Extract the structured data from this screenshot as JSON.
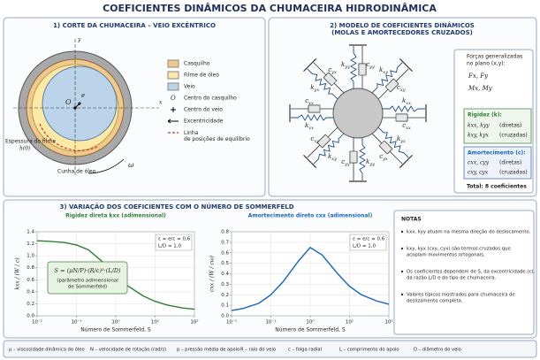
{
  "title": "COEFICIENTES DINÂMICOS DA CHUMACEIRA HIDRODINÂMICA",
  "panel1": {
    "heading": "1)  CORTE DA CHUMACEIRA – VEIO EXCÊNTRICO",
    "axis_x": "x",
    "axis_y": "y",
    "center": "O",
    "ecc": "e",
    "omega": "ω",
    "film_label": "Espessura do filme",
    "film_symbol": "h(θ)",
    "wedge": "Cunha de óleo",
    "legend": [
      "Casquilho",
      "Filme de óleo",
      "Veio",
      "Centro do casquilho",
      "Centro do veio",
      "Excentricidade",
      "Linha de posições de equilíbrio"
    ]
  },
  "panel2": {
    "heading": [
      "2)  MODELO DE COEFICIENTES DINÂMICOS",
      "(MOLAS E AMORTECEDORES CRUZADOS)"
    ],
    "labels": [
      {
        "sym": "k",
        "sub": "yy"
      },
      {
        "sym": "c",
        "sub": "yy"
      },
      {
        "sym": "k",
        "sub": "xy"
      },
      {
        "sym": "c",
        "sub": "xy"
      },
      {
        "sym": "k",
        "sub": "xx"
      },
      {
        "sym": "c",
        "sub": "xx"
      },
      {
        "sym": "k",
        "sub": "yx"
      },
      {
        "sym": "c",
        "sub": "yx"
      },
      {
        "sym": "k",
        "sub": "yy"
      },
      {
        "sym": "c",
        "sub": "yy"
      },
      {
        "sym": "k",
        "sub": "xy"
      },
      {
        "sym": "c",
        "sub": "xy"
      },
      {
        "sym": "k",
        "sub": "xx"
      },
      {
        "sym": "c",
        "sub": "xx"
      },
      {
        "sym": "k",
        "sub": "yx"
      },
      {
        "sym": "c",
        "sub": "yx"
      }
    ],
    "forces_title": [
      "Forças generalizadas",
      "no plano (x,y):"
    ],
    "forces": [
      "Fx, Fy",
      "Mx, My"
    ],
    "stiffness_title": "Rigidez (k):",
    "stiffness": [
      {
        "terms": "kxx, kyy",
        "kind": "(diretas)"
      },
      {
        "terms": "kxy, kyx",
        "kind": "(cruzadas)"
      }
    ],
    "damping_title": "Amortecimento (c):",
    "damping": [
      {
        "terms": "cxx, cyy",
        "kind": "(diretas)"
      },
      {
        "terms": "cxy, cyx",
        "kind": "(cruzadas)"
      }
    ],
    "total": "Total: 8 coeficientes"
  },
  "panel3": {
    "heading": "3)  VARIAÇÃO DOS COEFICIENTES COM O NÚMERO DE SOMMERFELD",
    "plots": [
      {
        "title": "Rigidez direta kxx (adimensional)",
        "ylabel": "kxx / (W / c)",
        "xlabel": "Número de Sommerfeld, S",
        "color": "#2e7d32",
        "params": [
          "ε = e/c = 0,6",
          "L/D = 1,0"
        ],
        "formula": "S = (μN/P)·(R/c)²·(L/D)",
        "formula_note": [
          "(parâmetro adimensional",
          "de Sommerfeld)"
        ],
        "log_x": true,
        "grid": true,
        "x": [
          0.01,
          0.02,
          0.05,
          0.1,
          0.2,
          0.5,
          1,
          2,
          5,
          10,
          20,
          50,
          100
        ],
        "values": [
          1.25,
          1.24,
          1.22,
          1.18,
          1.1,
          0.88,
          0.68,
          0.5,
          0.33,
          0.24,
          0.18,
          0.13,
          0.11
        ],
        "xlim": [
          0.01,
          100
        ],
        "xticks": [
          {
            "value": 0.01,
            "label": "10⁻²"
          },
          {
            "value": 0.1,
            "label": "10⁻¹"
          },
          {
            "value": 1,
            "label": "10⁰"
          },
          {
            "value": 10,
            "label": "10¹"
          },
          {
            "value": 100,
            "label": "10²"
          }
        ],
        "ylim": [
          0,
          1.4
        ],
        "yticks": [
          {
            "value": 0,
            "label": "0.0"
          },
          0.2,
          0.4,
          0.6,
          0.8,
          {
            "value": 1,
            "label": "1.0"
          },
          1.2,
          1.4
        ]
      },
      {
        "title": "Amortecimento direto cxx (adimensional)",
        "ylabel": "cxx / (W / cω)",
        "xlabel": "Número de Sommerfeld, S",
        "color": "#1565c0",
        "params": [
          "ε = e/c = 0,6",
          "L/D = 1,0"
        ],
        "log_x": true,
        "grid": true,
        "x": [
          0.01,
          0.02,
          0.05,
          0.1,
          0.2,
          0.5,
          1,
          2,
          5,
          10,
          20,
          50,
          100
        ],
        "values": [
          0.05,
          0.07,
          0.12,
          0.2,
          0.32,
          0.52,
          0.65,
          0.58,
          0.4,
          0.28,
          0.2,
          0.14,
          0.11
        ],
        "xlim": [
          0.01,
          100
        ],
        "xticks": [
          {
            "value": 0.01,
            "label": "10⁻²"
          },
          {
            "value": 0.1,
            "label": "10⁻¹"
          },
          {
            "value": 1,
            "label": "10⁰"
          },
          {
            "value": 10,
            "label": "10¹"
          },
          {
            "value": 100,
            "label": "10²"
          }
        ],
        "ylim": [
          0,
          0.8
        ],
        "yticks": [
          {
            "value": 0,
            "label": "0.0"
          },
          0.1,
          0.2,
          0.3,
          0.4,
          0.5,
          0.6,
          0.7,
          0.8
        ]
      }
    ],
    "notes_title": "NOTAS",
    "notes": [
      [
        "kxx, kyy atuam na mesma direção do deslocamento."
      ],
      [
        "kxy, kyx (cxy, cyx) são termos cruzados que",
        "acoplam movimentos ortogonais."
      ],
      [
        "Os coeficientes dependem de S, da excentricidade (ε),",
        "da razão L/D e do tipo de chumaceira."
      ],
      [
        "Valores típicos mostrados para chumaceira de",
        "deslizamento completa."
      ]
    ]
  },
  "footer": [
    "μ – viscosidade dinâmica do óleo",
    "N – velocidade de rotação (rad/s)",
    "p – pressão média de apoio",
    "R – raio do veio",
    "c – folga radial",
    "L – comprimento do apoio",
    "D – diâmetro do veio"
  ]
}
